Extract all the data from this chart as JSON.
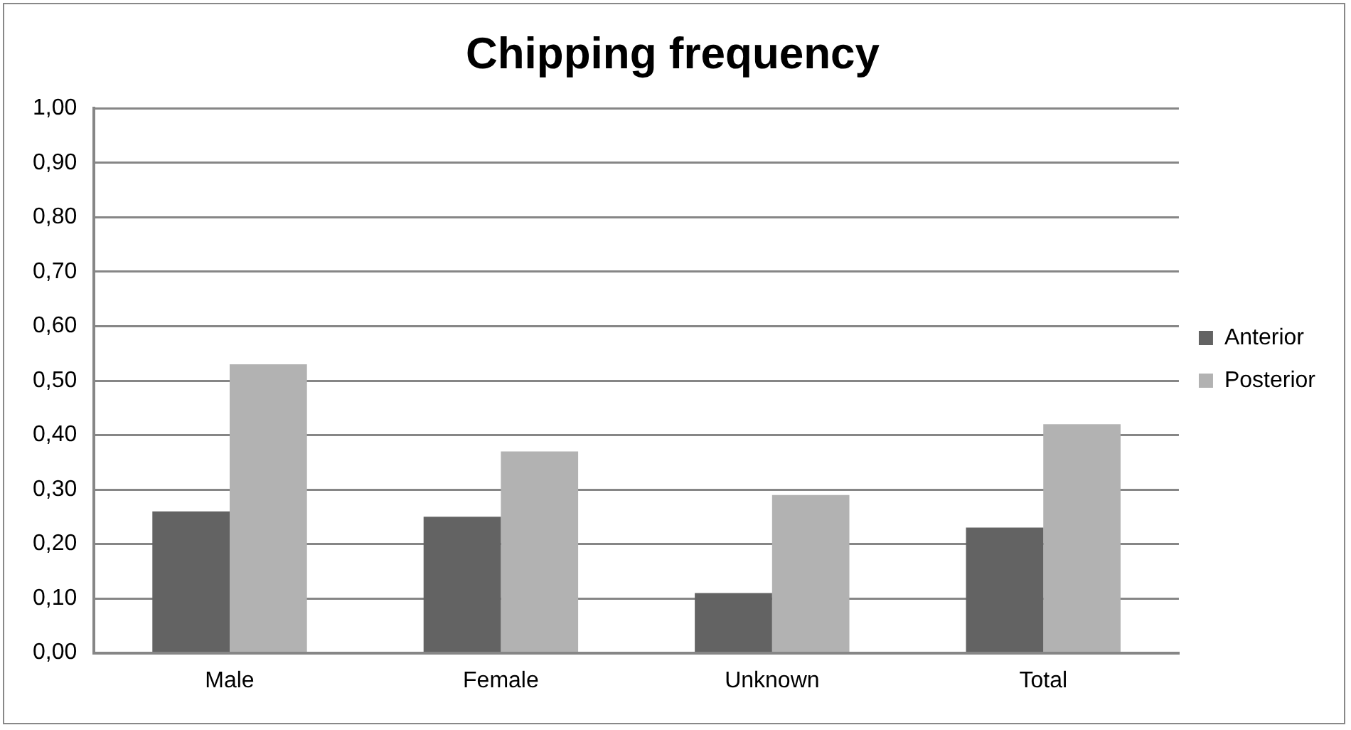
{
  "chart_data": {
    "type": "bar",
    "title": "Chipping frequency",
    "categories": [
      "Male",
      "Female",
      "Unknown",
      "Total"
    ],
    "series": [
      {
        "name": "Anterior",
        "color": "#636363",
        "values": [
          0.26,
          0.25,
          0.11,
          0.23
        ]
      },
      {
        "name": "Posterior",
        "color": "#b2b2b2",
        "values": [
          0.53,
          0.37,
          0.29,
          0.42
        ]
      }
    ],
    "ylim": [
      0,
      1
    ],
    "yticks": [
      {
        "value": 0,
        "label": "0,00"
      },
      {
        "value": 0.1,
        "label": "0,10"
      },
      {
        "value": 0.2,
        "label": "0,20"
      },
      {
        "value": 0.3,
        "label": "0,30"
      },
      {
        "value": 0.4,
        "label": "0,40"
      },
      {
        "value": 0.5,
        "label": "0,50"
      },
      {
        "value": 0.6,
        "label": "0,60"
      },
      {
        "value": 0.7,
        "label": "0,70"
      },
      {
        "value": 0.8,
        "label": "0,80"
      },
      {
        "value": 0.9,
        "label": "0,90"
      },
      {
        "value": 1,
        "label": "1,00"
      }
    ],
    "grid": "y",
    "legend": "right"
  }
}
